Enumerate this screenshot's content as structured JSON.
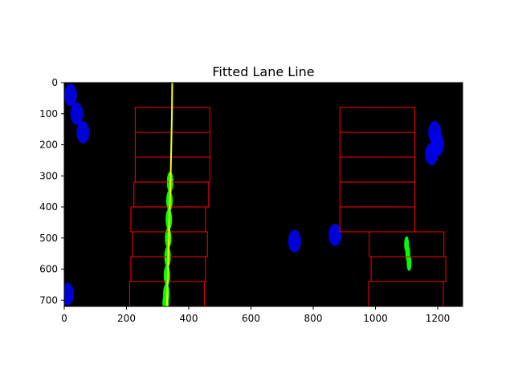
{
  "chart_data": {
    "type": "image",
    "title": "Fitted Lane Line",
    "xlabel": "",
    "ylabel": "",
    "xlim": [
      0,
      1280
    ],
    "ylim": [
      720,
      0
    ],
    "x_ticks": [
      0,
      200,
      400,
      600,
      800,
      1000,
      1200
    ],
    "y_ticks": [
      0,
      100,
      200,
      300,
      400,
      500,
      600,
      700
    ],
    "grid": false,
    "colors": {
      "background": "#000000",
      "window": "#ff0000",
      "fit_line": "#ffff00",
      "left_lane_pixels": "#00ff00",
      "right_lane_pixels": "#00ff00",
      "other_pixels": "#0000ff"
    },
    "left_windows": [
      {
        "x0": 228,
        "x1": 468,
        "y0": 80,
        "y1": 160
      },
      {
        "x0": 228,
        "x1": 468,
        "y0": 160,
        "y1": 240
      },
      {
        "x0": 228,
        "x1": 468,
        "y0": 240,
        "y1": 320
      },
      {
        "x0": 224,
        "x1": 464,
        "y0": 320,
        "y1": 400
      },
      {
        "x0": 214,
        "x1": 454,
        "y0": 400,
        "y1": 480
      },
      {
        "x0": 220,
        "x1": 460,
        "y0": 480,
        "y1": 560
      },
      {
        "x0": 214,
        "x1": 454,
        "y0": 560,
        "y1": 640
      },
      {
        "x0": 210,
        "x1": 450,
        "y0": 640,
        "y1": 720
      }
    ],
    "right_windows": [
      {
        "x0": 886,
        "x1": 1126,
        "y0": 80,
        "y1": 160
      },
      {
        "x0": 886,
        "x1": 1126,
        "y0": 160,
        "y1": 240
      },
      {
        "x0": 886,
        "x1": 1126,
        "y0": 240,
        "y1": 320
      },
      {
        "x0": 886,
        "x1": 1126,
        "y0": 320,
        "y1": 400
      },
      {
        "x0": 886,
        "x1": 1126,
        "y0": 400,
        "y1": 480
      },
      {
        "x0": 980,
        "x1": 1220,
        "y0": 480,
        "y1": 560
      },
      {
        "x0": 986,
        "x1": 1226,
        "y0": 560,
        "y1": 640
      },
      {
        "x0": 978,
        "x1": 1218,
        "y0": 640,
        "y1": 720
      }
    ],
    "left_fit_line": {
      "x": [
        347,
        346,
        344,
        342,
        339,
        336,
        333,
        330
      ],
      "y": [
        0,
        100,
        200,
        300,
        400,
        500,
        600,
        720
      ]
    },
    "left_lane_pixels": {
      "x": [
        340,
        338,
        336,
        334,
        332,
        330,
        328,
        326
      ],
      "y": [
        320,
        380,
        440,
        500,
        560,
        620,
        680,
        710
      ]
    },
    "right_lane_pixels": {
      "x": [
        1100,
        1104,
        1108
      ],
      "y": [
        520,
        550,
        580
      ]
    },
    "other_pixels": {
      "x": [
        20,
        40,
        60,
        1190,
        1200,
        1180,
        870,
        740,
        10
      ],
      "y": [
        40,
        100,
        160,
        160,
        200,
        230,
        490,
        510,
        680
      ]
    }
  }
}
